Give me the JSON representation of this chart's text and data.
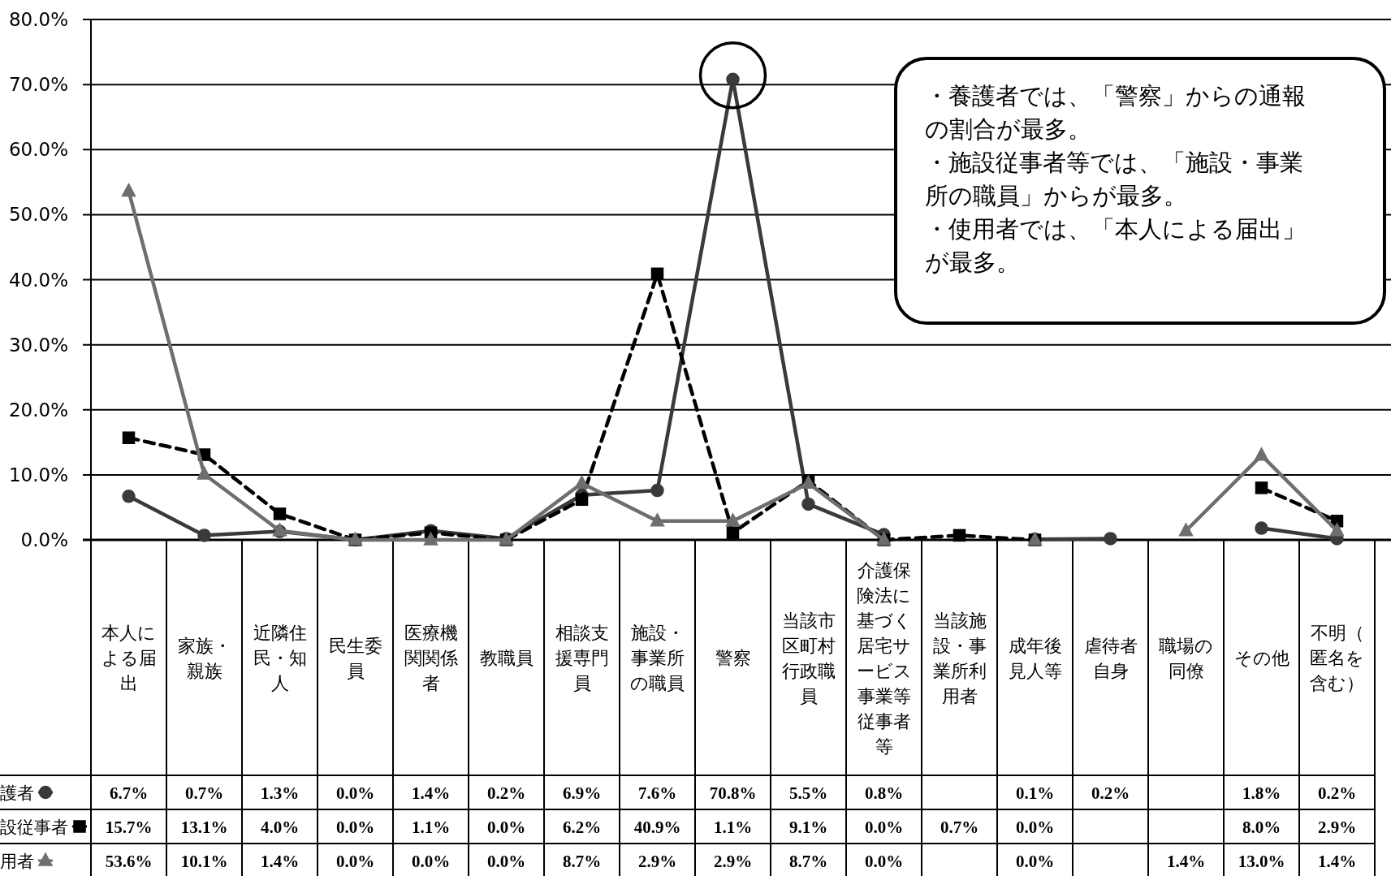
{
  "chart_data": {
    "type": "line",
    "categories": [
      "本人による届出",
      "家族・親族",
      "近隣住民・知人",
      "民生委員",
      "医療機関関係者",
      "教職員",
      "相談支援専門員",
      "施設・事業所の職員",
      "警察",
      "当該市区町村行政職員",
      "介護保険法に基づく居宅サービス事業等従事者等",
      "当該施設・事業所利用者",
      "成年後見人等",
      "虐待者自身",
      "職場の同僚",
      "その他",
      "不明（匿名を含む）"
    ],
    "series": [
      {
        "name": "護者",
        "color": "#3a3a3a",
        "marker": "circle",
        "line_style": "solid",
        "values": [
          6.7,
          0.7,
          1.3,
          0.0,
          1.4,
          0.2,
          6.9,
          7.6,
          70.8,
          5.5,
          0.8,
          null,
          0.1,
          0.2,
          null,
          1.8,
          0.2
        ],
        "value_labels": [
          "6.7%",
          "0.7%",
          "1.3%",
          "0.0%",
          "1.4%",
          "0.2%",
          "6.9%",
          "7.6%",
          "70.8%",
          "5.5%",
          "0.8%",
          null,
          "0.1%",
          "0.2%",
          null,
          "1.8%",
          "0.2%"
        ]
      },
      {
        "name": "設従事者",
        "color": "#000000",
        "marker": "square",
        "line_style": "dashed",
        "values": [
          15.7,
          13.1,
          4.0,
          0.0,
          1.1,
          0.0,
          6.2,
          40.9,
          1.1,
          9.1,
          0.0,
          0.7,
          0.0,
          null,
          null,
          8.0,
          2.9
        ],
        "value_labels": [
          "15.7%",
          "13.1%",
          "4.0%",
          "0.0%",
          "1.1%",
          "0.0%",
          "6.2%",
          "40.9%",
          "1.1%",
          "9.1%",
          "0.0%",
          "0.7%",
          "0.0%",
          null,
          null,
          "8.0%",
          "2.9%"
        ]
      },
      {
        "name": "用者",
        "color": "#6e6e6e",
        "marker": "triangle",
        "line_style": "solid",
        "values": [
          53.6,
          10.1,
          1.4,
          0.0,
          0.0,
          0.0,
          8.7,
          2.9,
          2.9,
          8.7,
          0.0,
          null,
          0.0,
          null,
          1.4,
          13.0,
          1.4
        ],
        "value_labels": [
          "53.6%",
          "10.1%",
          "1.4%",
          "0.0%",
          "0.0%",
          "0.0%",
          "8.7%",
          "2.9%",
          "2.9%",
          "8.7%",
          "0.0%",
          null,
          "0.0%",
          null,
          "1.4%",
          "13.0%",
          "1.4%"
        ]
      }
    ],
    "ylim": [
      0,
      80
    ],
    "yticks": [
      {
        "value": 0,
        "label": "0.0%"
      },
      {
        "value": 10,
        "label": "10.0%"
      },
      {
        "value": 20,
        "label": "20.0%"
      },
      {
        "value": 30,
        "label": "30.0%"
      },
      {
        "value": 40,
        "label": "40.0%"
      },
      {
        "value": 50,
        "label": "50.0%"
      },
      {
        "value": 60,
        "label": "60.0%"
      },
      {
        "value": 70,
        "label": "70.0%"
      },
      {
        "value": 80,
        "label": "80.0%"
      }
    ],
    "grid": "y",
    "legend": "bottom left",
    "annotations": [
      "・養護者では、「警察」からの通報の割合が最多。",
      "・施設従事者等では、「施設・事業所の職員」からが最多。",
      "・使用者では、「本人による届出」が最多。"
    ]
  }
}
